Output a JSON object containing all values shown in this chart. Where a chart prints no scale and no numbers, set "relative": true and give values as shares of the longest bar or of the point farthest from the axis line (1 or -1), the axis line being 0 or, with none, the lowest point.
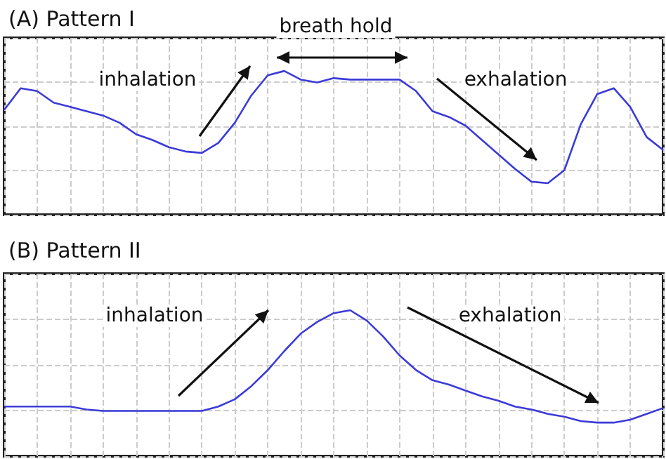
{
  "chart_data": [
    {
      "type": "line",
      "title": "(A) Pattern I",
      "relative": true,
      "tick_labels": false,
      "grid": true,
      "marker": "none",
      "annotations": [
        "inhalation",
        "breath hold",
        "exhalation"
      ],
      "categories": [
        null,
        null,
        null,
        null,
        null,
        null,
        null,
        null,
        null,
        null,
        null,
        null,
        null,
        null,
        null,
        null,
        null,
        null,
        null,
        null,
        null,
        null,
        null,
        null,
        null,
        null,
        null,
        null,
        null,
        null,
        null,
        null,
        null,
        null,
        null,
        null,
        null,
        null,
        null,
        null,
        null
      ],
      "series": [
        {
          "color": "#3b3bd9",
          "values": [
            0.73,
            0.88,
            0.86,
            0.78,
            0.75,
            0.72,
            0.69,
            0.64,
            0.56,
            0.52,
            0.47,
            0.44,
            0.43,
            0.5,
            0.64,
            0.83,
            0.97,
            1.0,
            0.94,
            0.92,
            0.95,
            0.94,
            0.94,
            0.94,
            0.94,
            0.86,
            0.72,
            0.68,
            0.62,
            0.52,
            0.42,
            0.32,
            0.23,
            0.22,
            0.31,
            0.63,
            0.84,
            0.88,
            0.75,
            0.54,
            0.45
          ]
        }
      ]
    },
    {
      "type": "line",
      "title": "(B) Pattern II",
      "relative": true,
      "tick_labels": false,
      "grid": true,
      "marker": "none",
      "annotations": [
        "inhalation",
        "exhalation"
      ],
      "categories": [
        null,
        null,
        null,
        null,
        null,
        null,
        null,
        null,
        null,
        null,
        null,
        null,
        null,
        null,
        null,
        null,
        null,
        null,
        null,
        null,
        null,
        null,
        null,
        null,
        null,
        null,
        null,
        null,
        null,
        null,
        null,
        null,
        null,
        null,
        null,
        null,
        null,
        null,
        null,
        null,
        null
      ],
      "series": [
        {
          "color": "#3b3bd9",
          "values": [
            0.34,
            0.34,
            0.34,
            0.34,
            0.34,
            0.32,
            0.31,
            0.31,
            0.31,
            0.31,
            0.31,
            0.31,
            0.31,
            0.34,
            0.39,
            0.48,
            0.59,
            0.72,
            0.84,
            0.92,
            0.98,
            1.0,
            0.93,
            0.82,
            0.69,
            0.59,
            0.52,
            0.49,
            0.45,
            0.41,
            0.38,
            0.34,
            0.32,
            0.29,
            0.27,
            0.24,
            0.23,
            0.23,
            0.25,
            0.29,
            0.33
          ]
        }
      ]
    }
  ]
}
